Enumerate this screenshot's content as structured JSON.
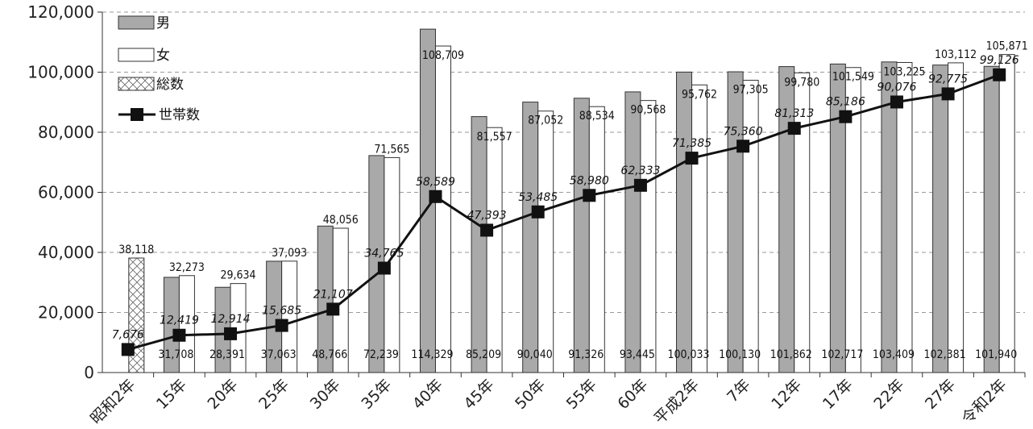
{
  "chart_data": {
    "type": "bar",
    "categories": [
      "昭和2年",
      "15年",
      "20年",
      "25年",
      "30年",
      "35年",
      "40年",
      "45年",
      "50年",
      "55年",
      "60年",
      "平成2年",
      "7年",
      "12年",
      "17年",
      "22年",
      "27年",
      "令和2年"
    ],
    "series": [
      {
        "name": "男",
        "type": "bar",
        "color": "#a9a9a9",
        "values": [
          null,
          31708,
          28391,
          37063,
          48766,
          72239,
          114329,
          85209,
          90040,
          91326,
          93445,
          100033,
          100130,
          101862,
          102717,
          103409,
          102381,
          101940
        ]
      },
      {
        "name": "女",
        "type": "bar",
        "color": "#ffffff",
        "values": [
          null,
          32273,
          29634,
          37093,
          48056,
          71565,
          108709,
          81557,
          87052,
          88534,
          90568,
          95762,
          97305,
          99780,
          101549,
          103225,
          103112,
          105871
        ]
      },
      {
        "name": "総数",
        "type": "bar",
        "pattern": "crosshatch",
        "values": [
          38118,
          null,
          null,
          null,
          null,
          null,
          null,
          null,
          null,
          null,
          null,
          null,
          null,
          null,
          null,
          null,
          null,
          null
        ]
      },
      {
        "name": "世帯数",
        "type": "line",
        "marker": "square",
        "color": "#111111",
        "values": [
          7676,
          12419,
          12914,
          15685,
          21107,
          34765,
          58589,
          47393,
          53485,
          58980,
          62333,
          71385,
          75360,
          81313,
          85186,
          90076,
          92775,
          99126
        ]
      }
    ],
    "yticks": [
      "0",
      "20,000",
      "40,000",
      "60,000",
      "80,000",
      "100,000",
      "120,000"
    ],
    "ylim": [
      0,
      120000
    ],
    "grid": true,
    "legend_position": "top-left",
    "title": "",
    "xlabel": "",
    "ylabel": ""
  }
}
